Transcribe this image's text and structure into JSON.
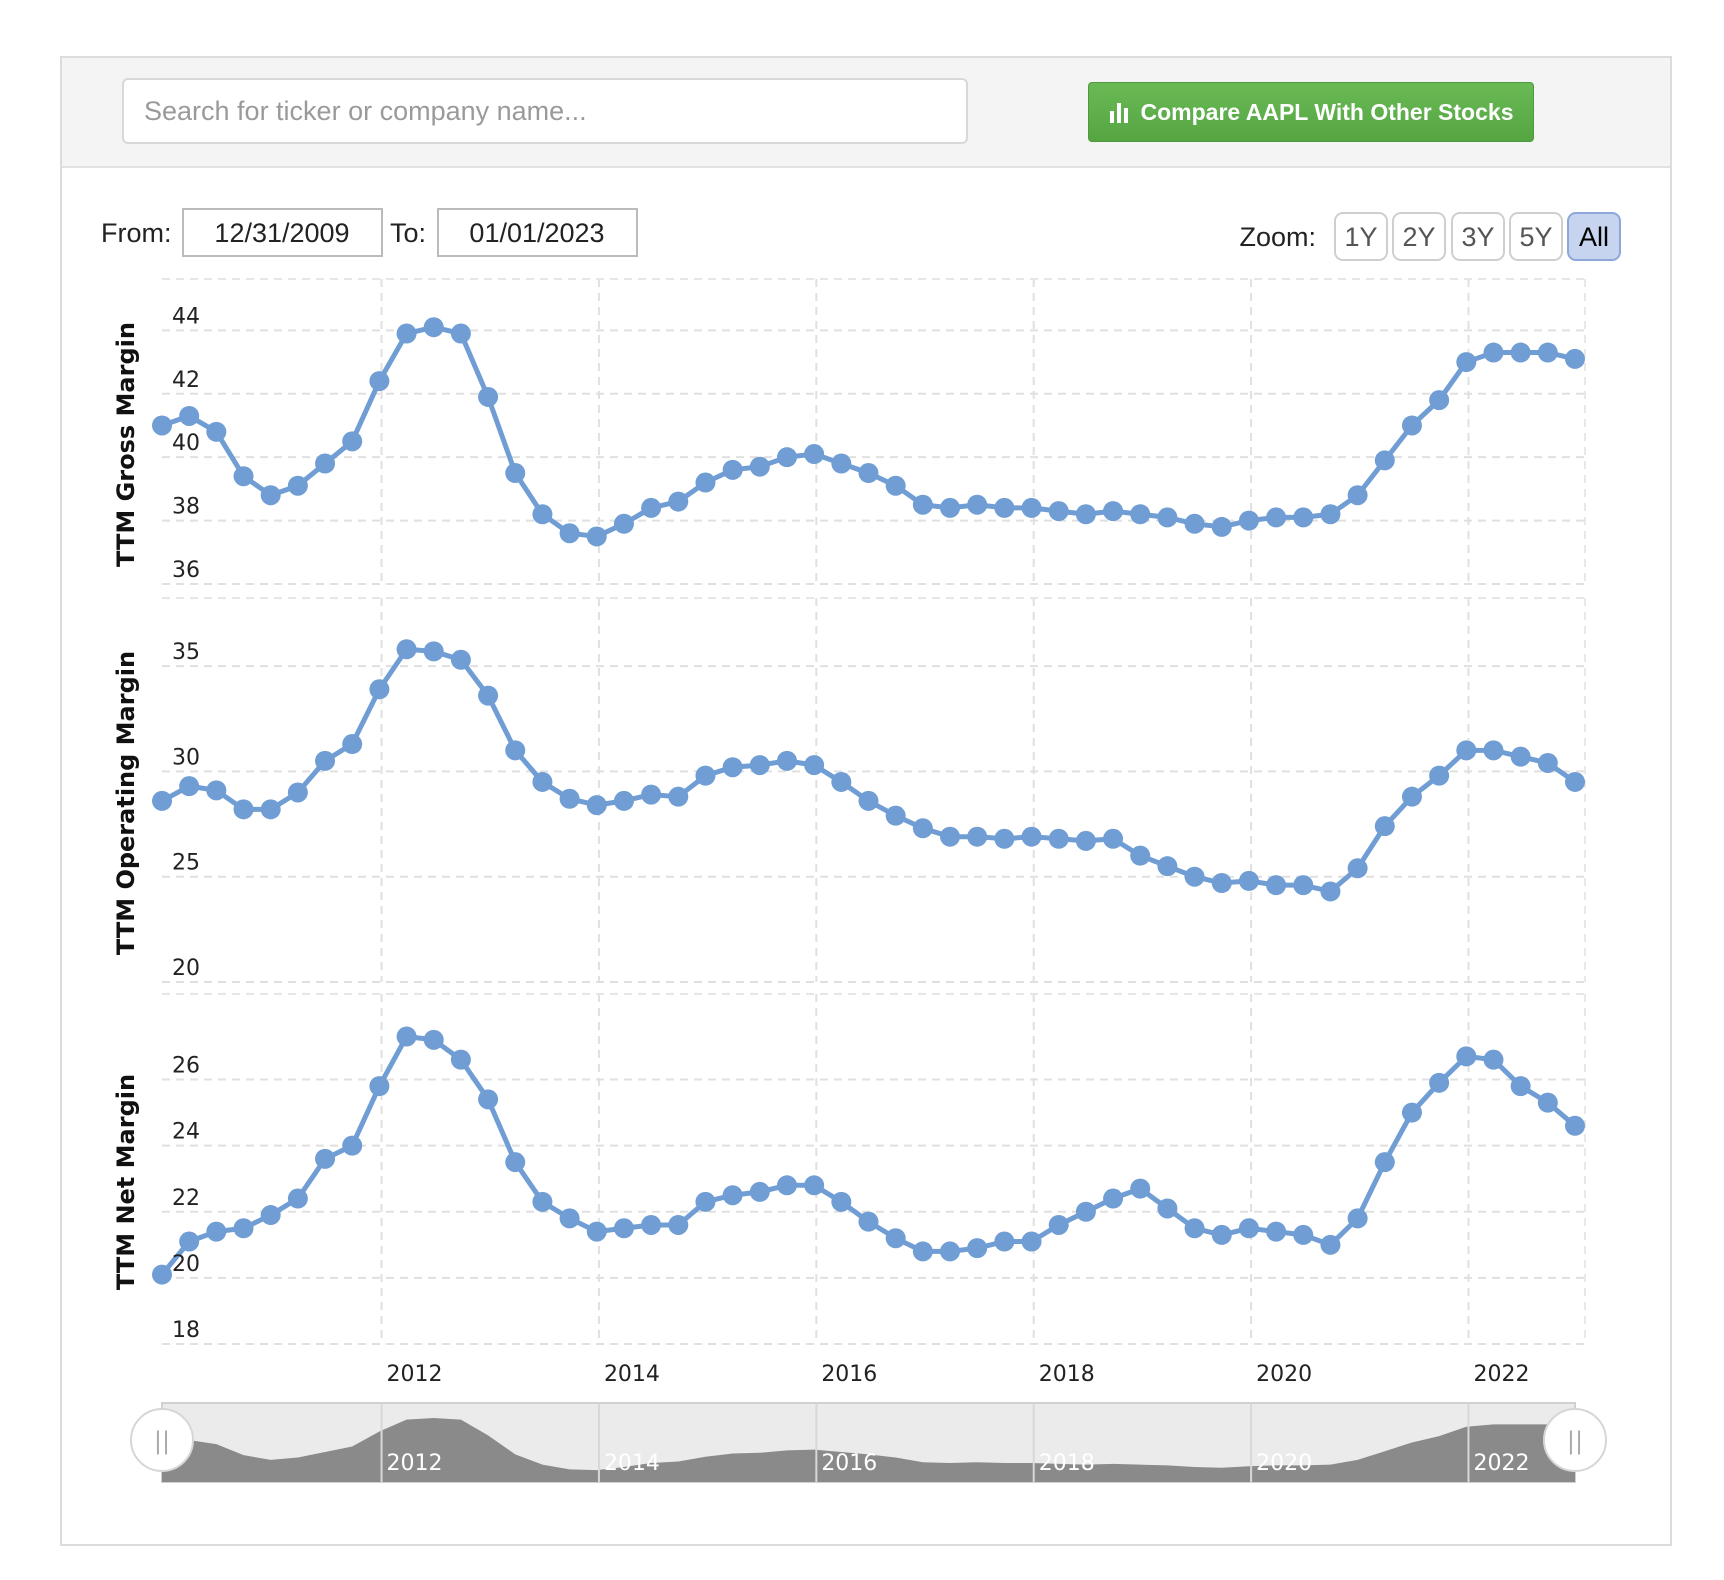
{
  "search": {
    "placeholder": "Search for ticker or company name..."
  },
  "compare": {
    "label": "Compare AAPL With Other Stocks",
    "icon": "bar-chart-icon",
    "color": "#5cad49"
  },
  "range": {
    "from_label": "From:",
    "from_value": "12/31/2009",
    "to_label": "To:",
    "to_value": "01/01/2023"
  },
  "zoom": {
    "label": "Zoom:",
    "buttons": [
      "1Y",
      "2Y",
      "3Y",
      "5Y",
      "All"
    ],
    "selected": "All"
  },
  "colors": {
    "series": "#6f9dd4",
    "navigator_fill": "#8a8a8a",
    "navigator_bg": "#ebebeb",
    "zoom_selected": "#c6d4ef"
  },
  "chart_data": {
    "type": "line",
    "x_start": 2009.98,
    "x_step": 0.25,
    "x_ticks": [
      "2012",
      "2014",
      "2016",
      "2018",
      "2020",
      "2022"
    ],
    "x_tick_values": [
      2012,
      2014,
      2016,
      2018,
      2020,
      2022
    ],
    "xlim": [
      2009.98,
      2022.98
    ],
    "panels": [
      {
        "name": "TTM Gross Margin",
        "ylabel": "TTM Gross Margin",
        "ylim": [
          36,
          44.8
        ],
        "yticks": [
          36,
          38,
          40,
          42,
          44
        ],
        "values": [
          41.0,
          41.3,
          40.8,
          39.4,
          38.8,
          39.1,
          39.8,
          40.5,
          42.4,
          43.9,
          44.1,
          43.9,
          41.9,
          39.5,
          38.2,
          37.6,
          37.5,
          37.9,
          38.4,
          38.6,
          39.2,
          39.6,
          39.7,
          40.0,
          40.1,
          39.8,
          39.5,
          39.1,
          38.5,
          38.4,
          38.5,
          38.4,
          38.4,
          38.3,
          38.2,
          38.3,
          38.2,
          38.1,
          37.9,
          37.8,
          38.0,
          38.1,
          38.1,
          38.2,
          38.8,
          39.9,
          41.0,
          41.8,
          43.0,
          43.3,
          43.3,
          43.3,
          43.1
        ]
      },
      {
        "name": "TTM Operating Margin",
        "ylabel": "TTM Operating Margin",
        "ylim": [
          20,
          37
        ],
        "yticks": [
          20,
          25,
          30,
          35
        ],
        "values": [
          28.6,
          29.3,
          29.1,
          28.2,
          28.2,
          29.0,
          30.5,
          31.3,
          33.9,
          35.8,
          35.7,
          35.3,
          33.6,
          31.0,
          29.5,
          28.7,
          28.4,
          28.6,
          28.9,
          28.8,
          29.8,
          30.2,
          30.3,
          30.5,
          30.3,
          29.5,
          28.6,
          27.9,
          27.3,
          26.9,
          26.9,
          26.8,
          26.9,
          26.8,
          26.7,
          26.8,
          26.0,
          25.5,
          25.0,
          24.7,
          24.8,
          24.6,
          24.6,
          24.3,
          25.4,
          27.4,
          28.8,
          29.8,
          31.0,
          31.0,
          30.7,
          30.4,
          29.5
        ]
      },
      {
        "name": "TTM Net Margin",
        "ylabel": "TTM Net Margin",
        "ylim": [
          18,
          27.8
        ],
        "yticks": [
          18,
          20,
          22,
          24,
          26
        ],
        "values": [
          20.1,
          21.1,
          21.4,
          21.5,
          21.9,
          22.4,
          23.6,
          24.0,
          25.8,
          27.3,
          27.2,
          26.6,
          25.4,
          23.5,
          22.3,
          21.8,
          21.4,
          21.5,
          21.6,
          21.6,
          22.3,
          22.5,
          22.6,
          22.8,
          22.8,
          22.3,
          21.7,
          21.2,
          20.8,
          20.8,
          20.9,
          21.1,
          21.1,
          21.6,
          22.0,
          22.4,
          22.7,
          22.1,
          21.5,
          21.3,
          21.5,
          21.4,
          21.3,
          21.0,
          21.8,
          23.5,
          25.0,
          25.9,
          26.7,
          26.6,
          25.8,
          25.3,
          24.6
        ]
      }
    ],
    "navigator": {
      "x_ticks": [
        "2012",
        "2014",
        "2016",
        "2018",
        "2020",
        "2022"
      ],
      "handles": [
        "||",
        "||"
      ]
    }
  }
}
